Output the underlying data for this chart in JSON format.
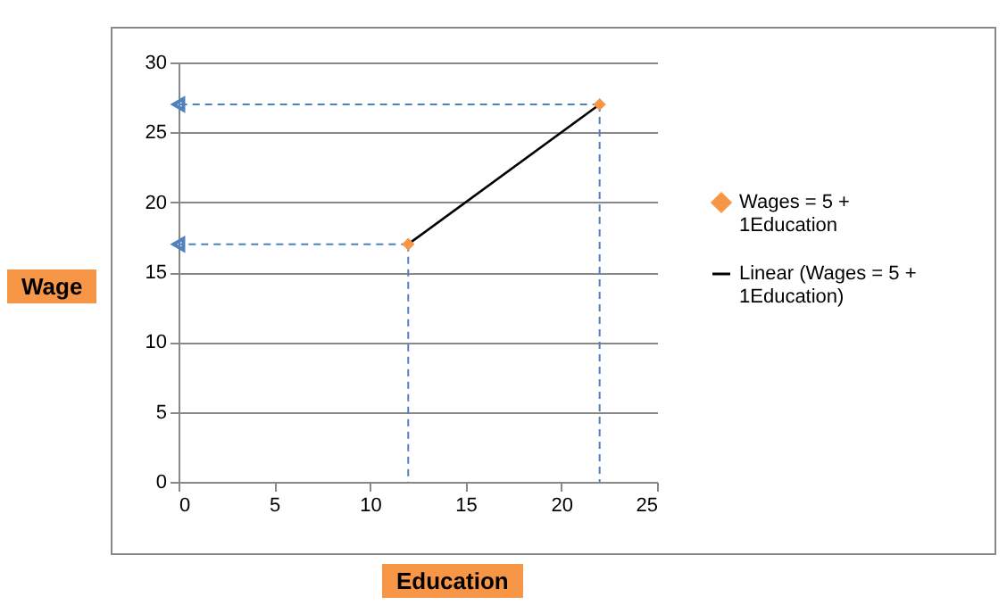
{
  "chart_data": {
    "type": "scatter",
    "xlabel": "Education",
    "ylabel": "Wage",
    "series": [
      {
        "name": "Wages = 5 + 1Education",
        "color": "#f79646",
        "marker": "diamond",
        "x": [
          12,
          22
        ],
        "values": [
          17,
          27
        ]
      },
      {
        "name": "Linear (Wages = 5 + 1Education)",
        "type": "line",
        "color": "#000000",
        "x": [
          12,
          22
        ],
        "values": [
          17,
          27
        ]
      },
      {
        "type": "line",
        "color": "#4f81bd",
        "line_style": "dashed",
        "x": [
          12,
          0
        ],
        "values": [
          17,
          17
        ]
      },
      {
        "type": "line",
        "color": "#4f81bd",
        "line_style": "dashed",
        "x": [
          22,
          0
        ],
        "values": [
          27,
          27
        ]
      },
      {
        "type": "line",
        "color": "#4f81bd",
        "line_style": "dashed",
        "x": [
          12,
          12
        ],
        "values": [
          17,
          0
        ]
      },
      {
        "type": "line",
        "color": "#4f81bd",
        "line_style": "dashed",
        "x": [
          22,
          22
        ],
        "values": [
          27,
          0
        ]
      }
    ],
    "xlim": [
      0,
      25
    ],
    "xticks": [
      0,
      5,
      10,
      15,
      20,
      25
    ],
    "ylim": [
      0,
      30
    ],
    "yticks": [
      0,
      5,
      10,
      15,
      20,
      25,
      30
    ],
    "grid": "y",
    "legend": "right"
  }
}
